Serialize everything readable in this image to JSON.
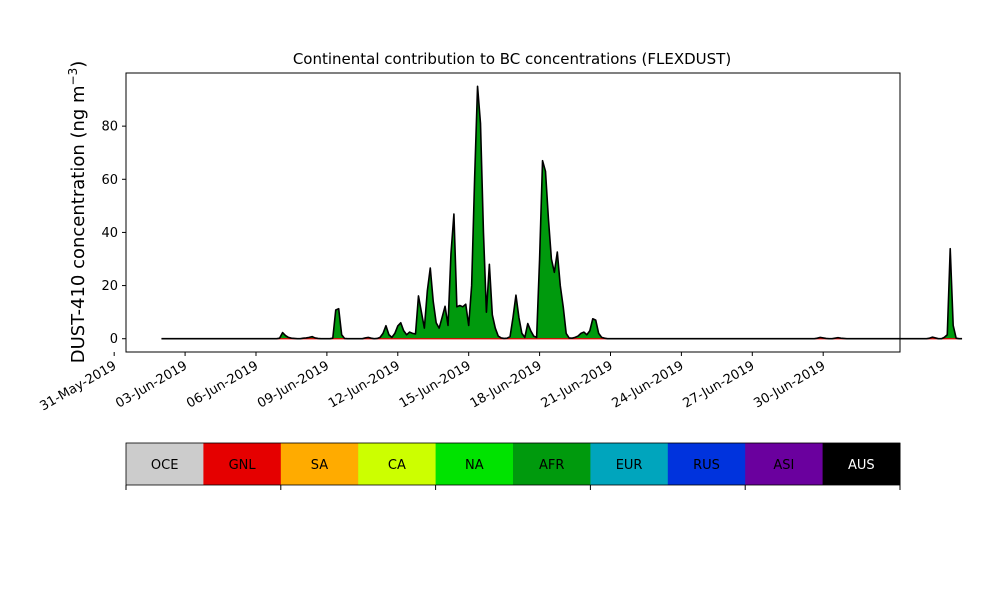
{
  "chart_data": {
    "type": "area",
    "title": "Continental contribution to BC concentrations (FLEXDUST)",
    "ylabel_main": "DUST-410 concentration (ng m",
    "ylabel_sup": "−3",
    "ylabel_close": ")",
    "xlabel": "",
    "x_start": "2019-06-02",
    "x_step_hours": 3,
    "xlim": [
      "2019-05-31T12:00",
      "2019-07-03T06:00"
    ],
    "ylim": [
      -5,
      100
    ],
    "yticks": [
      0,
      20,
      40,
      60,
      80
    ],
    "xticks": [
      {
        "date": "2019-05-31",
        "label": "31-May-2019"
      },
      {
        "date": "2019-06-03",
        "label": "03-Jun-2019"
      },
      {
        "date": "2019-06-06",
        "label": "06-Jun-2019"
      },
      {
        "date": "2019-06-09",
        "label": "09-Jun-2019"
      },
      {
        "date": "2019-06-12",
        "label": "12-Jun-2019"
      },
      {
        "date": "2019-06-15",
        "label": "15-Jun-2019"
      },
      {
        "date": "2019-06-18",
        "label": "18-Jun-2019"
      },
      {
        "date": "2019-06-21",
        "label": "21-Jun-2019"
      },
      {
        "date": "2019-06-24",
        "label": "24-Jun-2019"
      },
      {
        "date": "2019-06-27",
        "label": "27-Jun-2019"
      },
      {
        "date": "2019-06-30",
        "label": "30-Jun-2019"
      }
    ],
    "series": [
      {
        "name": "AFR",
        "color": "#009a0d",
        "values": [
          0,
          0,
          0,
          0,
          0,
          0,
          0,
          0,
          0,
          0,
          0,
          0,
          0,
          0,
          0,
          0,
          0,
          0,
          0,
          0,
          0,
          0,
          0,
          0,
          0,
          0,
          0,
          0,
          0,
          0,
          0,
          0,
          0,
          0,
          0,
          0,
          0,
          0,
          0,
          0,
          0.2,
          2.3,
          1.2,
          0.5,
          0.2,
          0.1,
          0,
          0,
          0.2,
          0.3,
          0.5,
          0.8,
          0.3,
          0.1,
          0,
          0,
          0,
          0,
          0.2,
          10.8,
          11.3,
          1.5,
          0.1,
          0,
          0,
          0,
          0,
          0,
          0,
          0.3,
          0.5,
          0.2,
          0,
          0.1,
          0.5,
          2,
          4.9,
          1.5,
          0.5,
          2,
          4.8,
          6,
          3,
          1.5,
          2.5,
          2,
          1.8,
          16.1,
          10,
          4,
          18,
          26.6,
          14,
          6,
          4,
          8,
          12.2,
          5,
          32,
          46.9,
          12,
          12.5,
          12,
          13,
          5,
          20,
          60,
          95,
          81,
          40,
          10,
          28,
          9,
          4,
          1,
          0.3,
          0.1,
          0.2,
          0.8,
          8,
          16.4,
          8,
          2,
          0.5,
          5.7,
          3,
          1,
          0.5,
          30,
          67,
          63,
          45,
          30,
          25,
          32.6,
          20,
          12,
          2,
          0.3,
          0.2,
          0.5,
          1,
          2,
          2.5,
          1.5,
          3,
          7.5,
          7,
          2,
          0.5,
          0.2,
          0,
          0,
          0,
          0,
          0,
          0,
          0,
          0,
          0,
          0,
          0,
          0,
          0,
          0,
          0,
          0,
          0,
          0,
          0,
          0,
          0,
          0,
          0,
          0,
          0,
          0,
          0,
          0,
          0,
          0,
          0,
          0,
          0,
          0,
          0,
          0,
          0,
          0,
          0,
          0,
          0,
          0,
          0,
          0,
          0,
          0,
          0,
          0,
          0,
          0,
          0,
          0,
          0,
          0,
          0,
          0,
          0,
          0,
          0,
          0,
          0,
          0,
          0,
          0,
          0,
          0,
          0,
          0,
          0,
          0,
          0,
          0.2,
          0.5,
          0.3,
          0.1,
          0,
          0,
          0.2,
          0.4,
          0.2,
          0.1,
          0,
          0,
          0,
          0,
          0,
          0,
          0,
          0,
          0,
          0,
          0,
          0,
          0,
          0,
          0,
          0,
          0,
          0,
          0,
          0,
          0,
          0,
          0,
          0,
          0,
          0,
          0,
          0,
          0.2,
          0.6,
          0.3,
          0,
          0,
          0.5,
          1.5,
          33.9,
          5,
          0.2,
          0,
          0
        ]
      }
    ],
    "legend": {
      "placement": "bottom",
      "entries": [
        {
          "name": "OCE",
          "color": "#cccccc",
          "text_color": "#000000"
        },
        {
          "name": "GNL",
          "color": "#e50000",
          "text_color": "#000000"
        },
        {
          "name": "SA",
          "color": "#ffab00",
          "text_color": "#000000"
        },
        {
          "name": "CA",
          "color": "#ccff00",
          "text_color": "#000000"
        },
        {
          "name": "NA",
          "color": "#00e300",
          "text_color": "#000000"
        },
        {
          "name": "AFR",
          "color": "#009a0d",
          "text_color": "#000000"
        },
        {
          "name": "EUR",
          "color": "#00a5bd",
          "text_color": "#000000"
        },
        {
          "name": "RUS",
          "color": "#0033dd",
          "text_color": "#000000"
        },
        {
          "name": "ASI",
          "color": "#6a009e",
          "text_color": "#000000"
        },
        {
          "name": "AUS",
          "color": "#000000",
          "text_color": "#ffffff"
        }
      ]
    },
    "grid": false
  }
}
